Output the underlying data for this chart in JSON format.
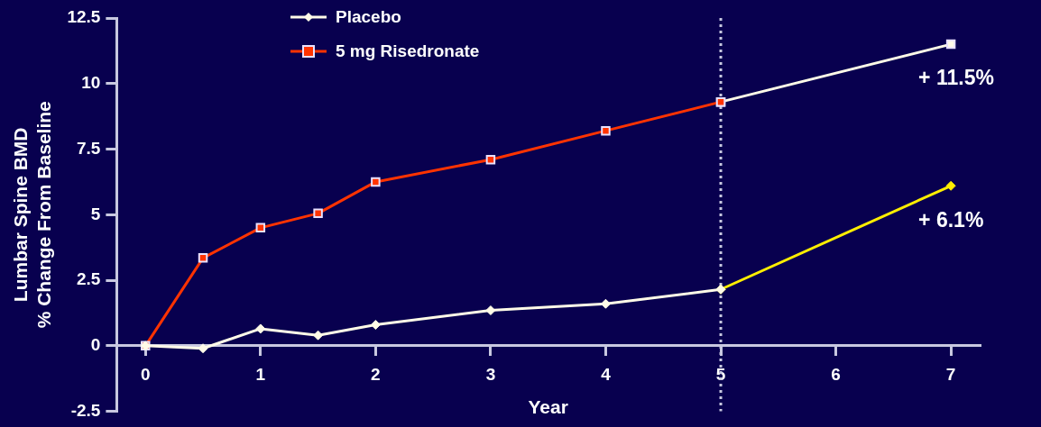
{
  "chart_data": {
    "type": "line",
    "xlabel": "Year",
    "ylabel": "Lumbar Spine BMD\n% Change From Baseline",
    "xlim": [
      -0.25,
      7.25
    ],
    "xticks": [
      0,
      1,
      2,
      3,
      4,
      5,
      6,
      7
    ],
    "ylim": [
      -2.5,
      12.5
    ],
    "yticks": [
      -2.5,
      0,
      2.5,
      5,
      7.5,
      10,
      12.5
    ],
    "grid": false,
    "legend": "top left",
    "series": [
      {
        "name": "Placebo",
        "color": "#fffbe8",
        "marker": "diamond",
        "x": [
          0,
          0.5,
          1,
          1.5,
          2,
          3,
          4,
          5
        ],
        "values": [
          0,
          -0.1,
          0.65,
          0.4,
          0.8,
          1.35,
          1.6,
          2.15
        ]
      },
      {
        "name": "5 mg Risedronate",
        "color": "#ff3300",
        "marker": "square",
        "x": [
          0,
          0.5,
          1,
          1.5,
          2,
          3,
          4,
          5
        ],
        "values": [
          0,
          3.35,
          4.5,
          5.05,
          6.25,
          7.1,
          8.2,
          9.3
        ]
      },
      {
        "color": "#fffbe8",
        "marker": "square",
        "x": [
          5,
          7
        ],
        "values": [
          9.3,
          11.5
        ]
      },
      {
        "color": "#ffee00",
        "marker": "diamond",
        "x": [
          5,
          7
        ],
        "values": [
          2.15,
          6.1
        ]
      }
    ],
    "ref_lines": [
      {
        "axis": "x",
        "value": 5,
        "line_style": "dotted",
        "color": "#c8c8e0"
      }
    ],
    "annotations": [
      {
        "text": "+ 11.5%",
        "x": 7,
        "y": 11.5
      },
      {
        "text": "+ 6.1%",
        "x": 7,
        "y": 6.1
      }
    ]
  }
}
